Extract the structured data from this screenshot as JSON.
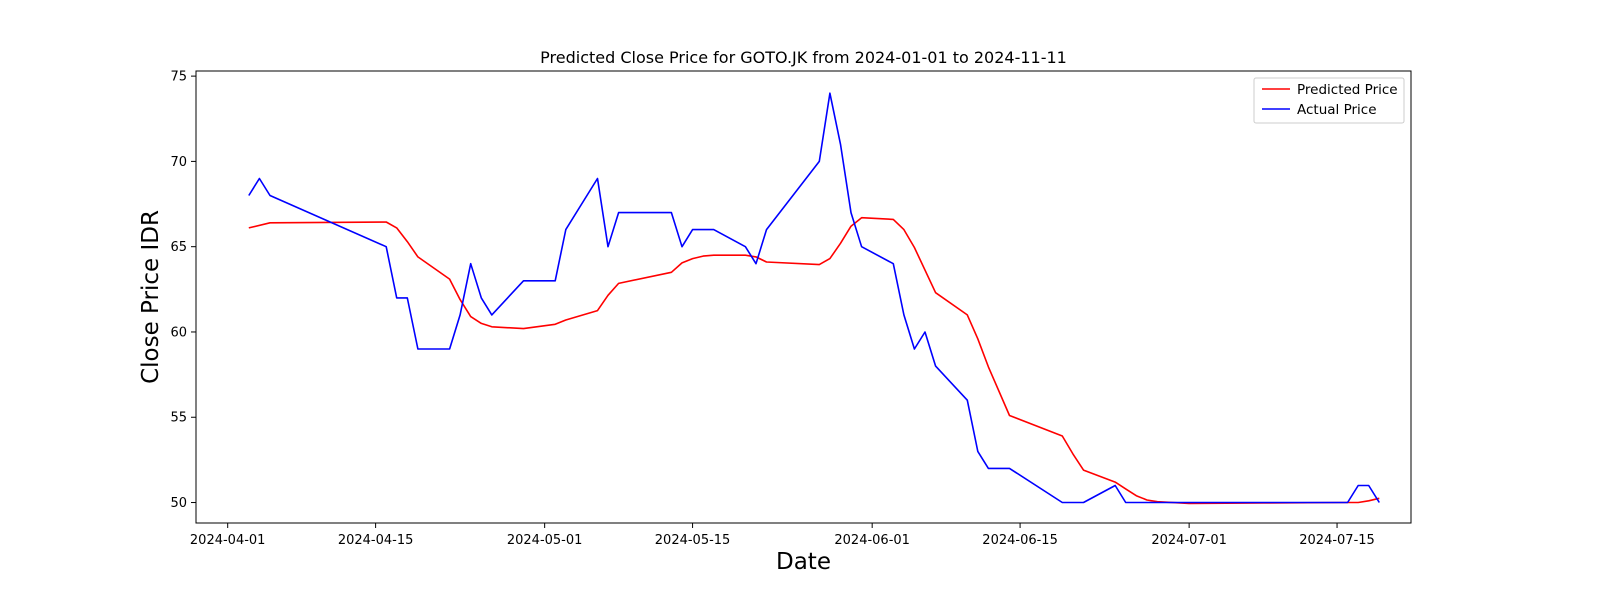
{
  "chart_data": {
    "type": "line",
    "title": "Predicted Close Price for GOTO.JK from 2024-01-01 to 2024-11-11",
    "xlabel": "Date",
    "ylabel": "Close Price IDR",
    "xlim": [
      "2024-03-29",
      "2024-07-22"
    ],
    "ylim": [
      48.8,
      75.3
    ],
    "x_ticks": [
      "2024-04-01",
      "2024-04-15",
      "2024-05-01",
      "2024-05-15",
      "2024-06-01",
      "2024-06-15",
      "2024-07-01",
      "2024-07-15"
    ],
    "y_ticks": [
      50,
      55,
      60,
      65,
      70,
      75
    ],
    "grid": false,
    "legend_position": "top-right",
    "series": [
      {
        "name": "Predicted Price",
        "color": "#ff0000",
        "points": [
          [
            "2024-04-03",
            66.1
          ],
          [
            "2024-04-05",
            66.4
          ],
          [
            "2024-04-16",
            66.45
          ],
          [
            "2024-04-17",
            66.1
          ],
          [
            "2024-04-18",
            65.3
          ],
          [
            "2024-04-19",
            64.4
          ],
          [
            "2024-04-22",
            63.1
          ],
          [
            "2024-04-23",
            61.9
          ],
          [
            "2024-04-24",
            60.9
          ],
          [
            "2024-04-25",
            60.5
          ],
          [
            "2024-04-26",
            60.3
          ],
          [
            "2024-04-29",
            60.2
          ],
          [
            "2024-05-02",
            60.45
          ],
          [
            "2024-05-03",
            60.7
          ],
          [
            "2024-05-06",
            61.25
          ],
          [
            "2024-05-07",
            62.15
          ],
          [
            "2024-05-08",
            62.85
          ],
          [
            "2024-05-13",
            63.5
          ],
          [
            "2024-05-14",
            64.05
          ],
          [
            "2024-05-15",
            64.3
          ],
          [
            "2024-05-16",
            64.45
          ],
          [
            "2024-05-17",
            64.5
          ],
          [
            "2024-05-20",
            64.5
          ],
          [
            "2024-05-21",
            64.4
          ],
          [
            "2024-05-22",
            64.1
          ],
          [
            "2024-05-27",
            63.95
          ],
          [
            "2024-05-28",
            64.3
          ],
          [
            "2024-05-29",
            65.2
          ],
          [
            "2024-05-30",
            66.2
          ],
          [
            "2024-05-31",
            66.7
          ],
          [
            "2024-06-03",
            66.6
          ],
          [
            "2024-06-04",
            66.0
          ],
          [
            "2024-06-05",
            64.95
          ],
          [
            "2024-06-07",
            62.3
          ],
          [
            "2024-06-10",
            61.0
          ],
          [
            "2024-06-11",
            59.6
          ],
          [
            "2024-06-12",
            57.95
          ],
          [
            "2024-06-14",
            55.1
          ],
          [
            "2024-06-19",
            53.9
          ],
          [
            "2024-06-20",
            52.85
          ],
          [
            "2024-06-21",
            51.9
          ],
          [
            "2024-06-24",
            51.2
          ],
          [
            "2024-06-25",
            50.8
          ],
          [
            "2024-06-26",
            50.4
          ],
          [
            "2024-06-27",
            50.15
          ],
          [
            "2024-06-28",
            50.05
          ],
          [
            "2024-07-01",
            49.95
          ],
          [
            "2024-07-08",
            49.97
          ],
          [
            "2024-07-16",
            50.0
          ],
          [
            "2024-07-17",
            50.0
          ],
          [
            "2024-07-18",
            50.1
          ],
          [
            "2024-07-19",
            50.25
          ]
        ]
      },
      {
        "name": "Actual Price",
        "color": "#0000ff",
        "points": [
          [
            "2024-04-03",
            68
          ],
          [
            "2024-04-04",
            69
          ],
          [
            "2024-04-05",
            68
          ],
          [
            "2024-04-16",
            65
          ],
          [
            "2024-04-17",
            62
          ],
          [
            "2024-04-18",
            62
          ],
          [
            "2024-04-19",
            59
          ],
          [
            "2024-04-22",
            59
          ],
          [
            "2024-04-23",
            61
          ],
          [
            "2024-04-24",
            64
          ],
          [
            "2024-04-25",
            62
          ],
          [
            "2024-04-26",
            61
          ],
          [
            "2024-04-29",
            63
          ],
          [
            "2024-05-02",
            63
          ],
          [
            "2024-05-03",
            66
          ],
          [
            "2024-05-06",
            69
          ],
          [
            "2024-05-07",
            65
          ],
          [
            "2024-05-08",
            67
          ],
          [
            "2024-05-13",
            67
          ],
          [
            "2024-05-14",
            65
          ],
          [
            "2024-05-15",
            66
          ],
          [
            "2024-05-17",
            66
          ],
          [
            "2024-05-20",
            65
          ],
          [
            "2024-05-21",
            64
          ],
          [
            "2024-05-22",
            66
          ],
          [
            "2024-05-27",
            70
          ],
          [
            "2024-05-28",
            74
          ],
          [
            "2024-05-29",
            71
          ],
          [
            "2024-05-30",
            67
          ],
          [
            "2024-05-31",
            65
          ],
          [
            "2024-06-03",
            64
          ],
          [
            "2024-06-04",
            61
          ],
          [
            "2024-06-05",
            59
          ],
          [
            "2024-06-06",
            60
          ],
          [
            "2024-06-07",
            58
          ],
          [
            "2024-06-10",
            56
          ],
          [
            "2024-06-11",
            53
          ],
          [
            "2024-06-12",
            52
          ],
          [
            "2024-06-14",
            52
          ],
          [
            "2024-06-19",
            50
          ],
          [
            "2024-06-21",
            50
          ],
          [
            "2024-06-24",
            51
          ],
          [
            "2024-06-25",
            50
          ],
          [
            "2024-06-28",
            50
          ],
          [
            "2024-07-16",
            50
          ],
          [
            "2024-07-17",
            51
          ],
          [
            "2024-07-18",
            51
          ],
          [
            "2024-07-19",
            50
          ]
        ]
      }
    ]
  }
}
